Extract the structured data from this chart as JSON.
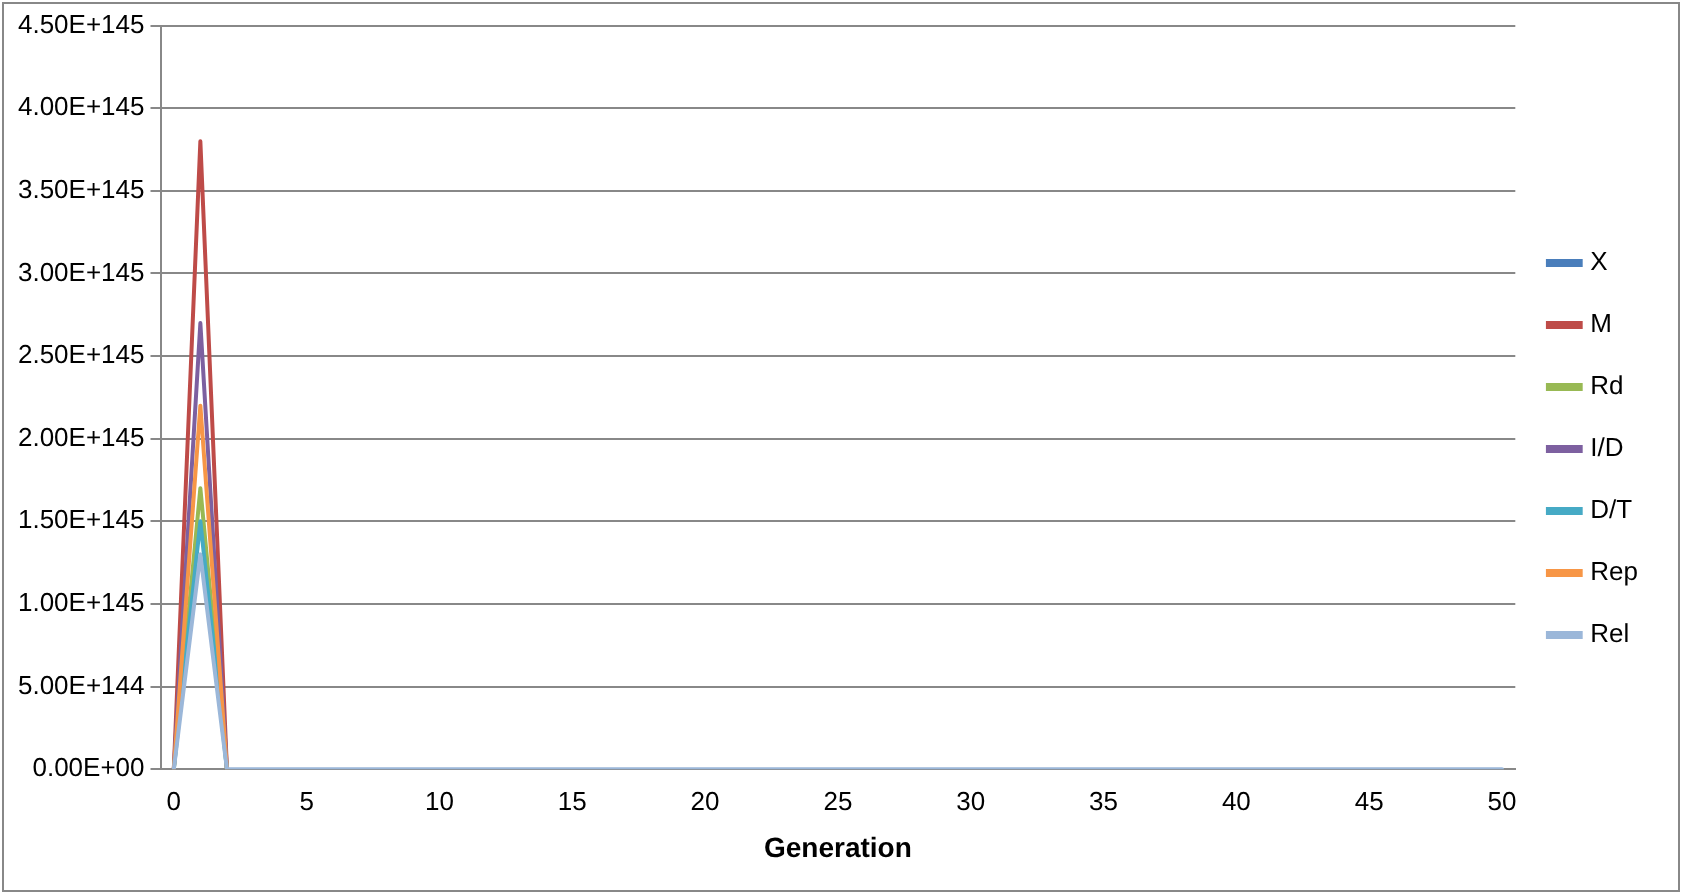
{
  "chart_data": {
    "type": "line",
    "xlabel": "Generation",
    "categories": [
      "0",
      null,
      null,
      null,
      null,
      "5",
      null,
      null,
      null,
      null,
      "10",
      null,
      null,
      null,
      null,
      "15",
      null,
      null,
      null,
      null,
      "20",
      null,
      null,
      null,
      null,
      "25",
      null,
      null,
      null,
      null,
      "30",
      null,
      null,
      null,
      null,
      "35",
      null,
      null,
      null,
      null,
      "40",
      null,
      null,
      null,
      null,
      "45",
      null,
      null,
      null,
      null,
      "50"
    ],
    "series": [
      {
        "name": "X",
        "color": "#4a7ebb",
        "values": [
          null,
          null,
          null,
          null,
          null,
          null,
          null,
          null,
          null,
          null,
          null,
          null,
          null,
          null,
          null,
          null,
          null,
          null,
          null,
          null,
          null,
          null,
          null,
          null,
          null,
          null,
          null,
          null,
          null,
          null,
          null,
          null,
          null,
          null,
          null,
          null,
          null,
          null,
          null,
          null,
          null,
          null,
          null,
          null,
          null,
          null,
          null,
          null,
          null,
          null,
          null
        ]
      },
      {
        "name": "M",
        "color": "#be4b48",
        "values": [
          0,
          3.8e+145,
          0,
          null,
          null,
          null,
          null,
          null,
          null,
          null,
          null,
          null,
          null,
          null,
          null,
          null,
          null,
          null,
          null,
          null,
          null,
          null,
          null,
          null,
          null,
          null,
          null,
          null,
          null,
          null,
          null,
          null,
          null,
          null,
          null,
          null,
          null,
          null,
          null,
          null,
          null,
          null,
          null,
          null,
          null,
          null,
          null,
          null,
          null,
          null,
          null
        ]
      },
      {
        "name": "Rd",
        "color": "#98b954",
        "values": [
          0,
          1.7e+145,
          0,
          null,
          null,
          null,
          null,
          null,
          null,
          null,
          null,
          null,
          null,
          null,
          null,
          null,
          null,
          null,
          null,
          null,
          null,
          null,
          null,
          null,
          null,
          null,
          null,
          null,
          null,
          null,
          null,
          null,
          null,
          null,
          null,
          null,
          null,
          null,
          null,
          null,
          null,
          null,
          null,
          null,
          null,
          null,
          null,
          null,
          null,
          null,
          null
        ]
      },
      {
        "name": "I/D",
        "color": "#7d60a0",
        "values": [
          0,
          2.7e+145,
          0,
          null,
          null,
          null,
          null,
          null,
          null,
          null,
          null,
          null,
          null,
          null,
          null,
          null,
          null,
          null,
          null,
          null,
          null,
          null,
          null,
          null,
          null,
          null,
          null,
          null,
          null,
          null,
          null,
          null,
          null,
          null,
          null,
          null,
          null,
          null,
          null,
          null,
          null,
          null,
          null,
          null,
          null,
          null,
          null,
          null,
          null,
          null,
          null
        ]
      },
      {
        "name": "D/T",
        "color": "#46aac5",
        "values": [
          0,
          1.5e+145,
          0,
          null,
          null,
          null,
          null,
          null,
          null,
          null,
          null,
          null,
          null,
          null,
          null,
          null,
          null,
          null,
          null,
          null,
          null,
          null,
          null,
          null,
          null,
          null,
          null,
          null,
          null,
          null,
          null,
          null,
          null,
          null,
          null,
          null,
          null,
          null,
          null,
          null,
          null,
          null,
          null,
          null,
          null,
          null,
          null,
          null,
          null,
          null,
          null
        ]
      },
      {
        "name": "Rep",
        "color": "#f79646",
        "values": [
          0,
          2.2e+145,
          0,
          null,
          null,
          null,
          null,
          null,
          null,
          null,
          null,
          null,
          null,
          null,
          null,
          null,
          null,
          null,
          null,
          null,
          null,
          null,
          null,
          null,
          null,
          null,
          null,
          null,
          null,
          null,
          null,
          null,
          null,
          null,
          null,
          null,
          null,
          null,
          null,
          null,
          null,
          null,
          null,
          null,
          null,
          null,
          null,
          null,
          null,
          null,
          null
        ]
      },
      {
        "name": "Rel",
        "color": "#9bb7d9",
        "values": [
          0,
          1.3e+145,
          0,
          0,
          0,
          0,
          0,
          0,
          0,
          0,
          0,
          0,
          0,
          0,
          0,
          0,
          0,
          0,
          0,
          0,
          0,
          0,
          0,
          0,
          0,
          0,
          0,
          0,
          0,
          0,
          0,
          0,
          0,
          0,
          0,
          0,
          0,
          0,
          0,
          0,
          0,
          0,
          0,
          0,
          0,
          0,
          0,
          0,
          0,
          0,
          0
        ]
      }
    ],
    "ylim": [
      0,
      4.5e+145
    ],
    "yticks": [
      {
        "value": 0,
        "label": "0.00E+00"
      },
      {
        "value": 5e+144,
        "label": "5.00E+144"
      },
      {
        "value": 1e+145,
        "label": "1.00E+145"
      },
      {
        "value": 1.5e+145,
        "label": "1.50E+145"
      },
      {
        "value": 2e+145,
        "label": "2.00E+145"
      },
      {
        "value": 2.5e+145,
        "label": "2.50E+145"
      },
      {
        "value": 3e+145,
        "label": "3.00E+145"
      },
      {
        "value": 3.5e+145,
        "label": "3.50E+145"
      },
      {
        "value": 4e+145,
        "label": "4.00E+145"
      },
      {
        "value": 4.5e+145,
        "label": "4.50E+145"
      }
    ],
    "grid": "y",
    "legend": "right",
    "marker": "none",
    "line_style": "solid"
  }
}
